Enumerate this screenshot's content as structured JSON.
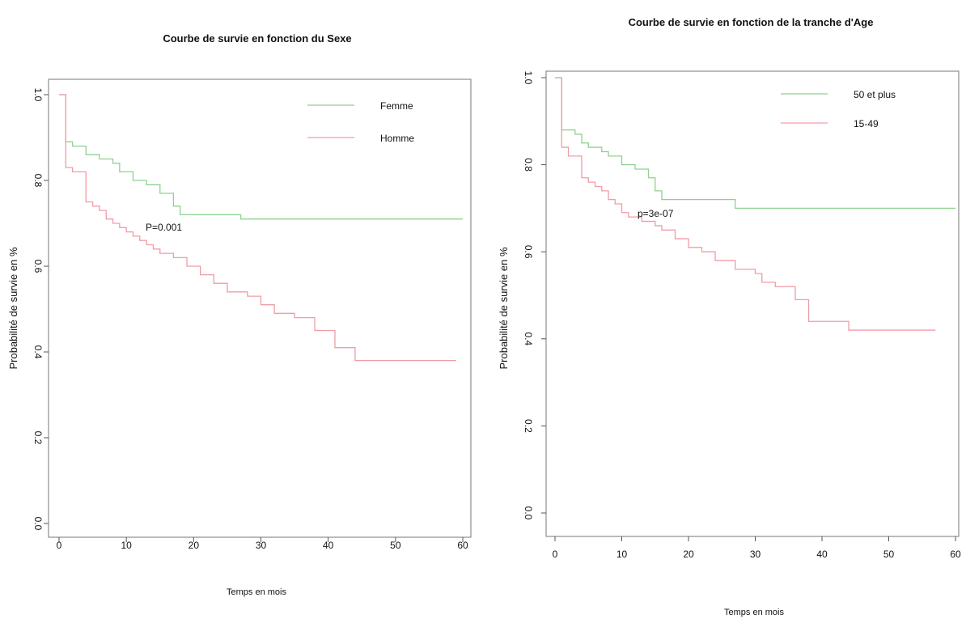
{
  "chart_data": [
    {
      "type": "line",
      "title": "Courbe de survie en fonction du Sexe",
      "xlabel": "Temps en mois",
      "ylabel": "Probabilité de survie en %",
      "xlim": [
        0,
        60
      ],
      "ylim": [
        0,
        1.0
      ],
      "xticks": [
        "0",
        "10",
        "20",
        "30",
        "40",
        "50",
        "60"
      ],
      "yticks": [
        "0.0",
        "0.2",
        "0.4",
        "0.6",
        "0.8",
        "1.0"
      ],
      "grid": false,
      "legend_position": "top-right",
      "annotation": "P=0.001",
      "series": [
        {
          "name": "Femme",
          "color": "#8fd18f",
          "points": [
            [
              0,
              1.0
            ],
            [
              1,
              0.89
            ],
            [
              2,
              0.88
            ],
            [
              4,
              0.86
            ],
            [
              6,
              0.85
            ],
            [
              8,
              0.84
            ],
            [
              9,
              0.82
            ],
            [
              11,
              0.8
            ],
            [
              13,
              0.79
            ],
            [
              15,
              0.77
            ],
            [
              17,
              0.74
            ],
            [
              18,
              0.72
            ],
            [
              22,
              0.72
            ],
            [
              27,
              0.71
            ],
            [
              30,
              0.71
            ],
            [
              60,
              0.71
            ]
          ]
        },
        {
          "name": "Homme",
          "color": "#f09ca6",
          "points": [
            [
              0,
              1.0
            ],
            [
              1,
              0.83
            ],
            [
              2,
              0.82
            ],
            [
              4,
              0.75
            ],
            [
              5,
              0.74
            ],
            [
              6,
              0.73
            ],
            [
              7,
              0.71
            ],
            [
              8,
              0.7
            ],
            [
              9,
              0.69
            ],
            [
              10,
              0.68
            ],
            [
              11,
              0.67
            ],
            [
              12,
              0.66
            ],
            [
              13,
              0.65
            ],
            [
              14,
              0.64
            ],
            [
              15,
              0.63
            ],
            [
              17,
              0.62
            ],
            [
              19,
              0.6
            ],
            [
              21,
              0.58
            ],
            [
              23,
              0.56
            ],
            [
              25,
              0.54
            ],
            [
              28,
              0.53
            ],
            [
              30,
              0.51
            ],
            [
              32,
              0.49
            ],
            [
              35,
              0.48
            ],
            [
              38,
              0.45
            ],
            [
              41,
              0.41
            ],
            [
              44,
              0.38
            ],
            [
              59,
              0.38
            ]
          ]
        }
      ]
    },
    {
      "type": "line",
      "title": "Courbe de survie en fonction de la tranche d'Age",
      "xlabel": "Temps en mois",
      "ylabel": "Probabilité de survie en %",
      "xlim": [
        0,
        60
      ],
      "ylim": [
        0,
        1.0
      ],
      "xticks": [
        "0",
        "10",
        "20",
        "30",
        "40",
        "50",
        "60"
      ],
      "yticks": [
        "0.0",
        "0.2",
        "0.4",
        "0.6",
        "0.8",
        "1.0"
      ],
      "grid": false,
      "legend_position": "top-right",
      "annotation": "p=3e-07",
      "series": [
        {
          "name": "50 et plus",
          "color": "#8fd18f",
          "points": [
            [
              0,
              1.0
            ],
            [
              1,
              0.88
            ],
            [
              3,
              0.87
            ],
            [
              4,
              0.85
            ],
            [
              5,
              0.84
            ],
            [
              7,
              0.83
            ],
            [
              8,
              0.82
            ],
            [
              10,
              0.8
            ],
            [
              12,
              0.79
            ],
            [
              14,
              0.77
            ],
            [
              15,
              0.74
            ],
            [
              16,
              0.72
            ],
            [
              21,
              0.72
            ],
            [
              27,
              0.7
            ],
            [
              30,
              0.7
            ],
            [
              60,
              0.7
            ]
          ]
        },
        {
          "name": "15-49",
          "color": "#f09ca6",
          "points": [
            [
              0,
              1.0
            ],
            [
              1,
              0.84
            ],
            [
              2,
              0.82
            ],
            [
              4,
              0.77
            ],
            [
              5,
              0.76
            ],
            [
              6,
              0.75
            ],
            [
              7,
              0.74
            ],
            [
              8,
              0.72
            ],
            [
              9,
              0.71
            ],
            [
              10,
              0.69
            ],
            [
              11,
              0.68
            ],
            [
              13,
              0.67
            ],
            [
              15,
              0.66
            ],
            [
              16,
              0.65
            ],
            [
              18,
              0.63
            ],
            [
              20,
              0.61
            ],
            [
              22,
              0.6
            ],
            [
              24,
              0.58
            ],
            [
              27,
              0.56
            ],
            [
              30,
              0.55
            ],
            [
              31,
              0.53
            ],
            [
              33,
              0.52
            ],
            [
              36,
              0.49
            ],
            [
              38,
              0.44
            ],
            [
              44,
              0.42
            ],
            [
              57,
              0.42
            ]
          ]
        }
      ]
    }
  ]
}
